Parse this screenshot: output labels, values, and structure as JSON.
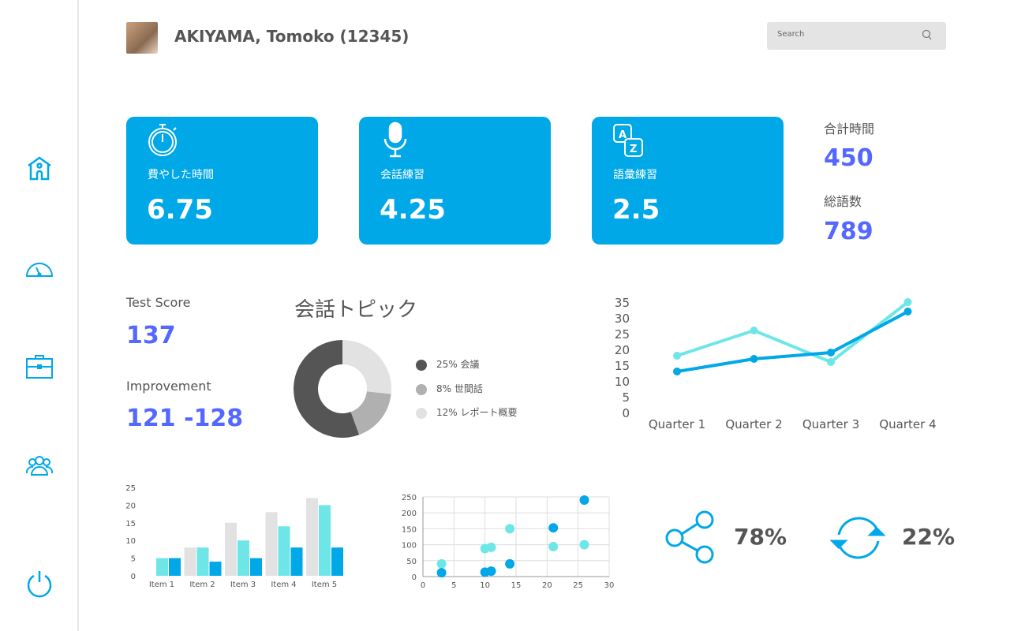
{
  "header": {
    "user_name": "AKIYAMA, Tomoko (12345)",
    "search_placeholder": "Search"
  },
  "sidebar": {
    "items": [
      {
        "icon": "home-icon"
      },
      {
        "icon": "gauge-icon"
      },
      {
        "icon": "briefcase-icon"
      },
      {
        "icon": "users-icon"
      },
      {
        "icon": "power-icon"
      }
    ]
  },
  "colors": {
    "accent": "#00a8e8",
    "light": "#6ee6e8",
    "value": "#5468ff",
    "gray": "#e2e2e2"
  },
  "cards": [
    {
      "icon": "stopwatch-icon",
      "label": "費やした時間",
      "value": "6.75"
    },
    {
      "icon": "microphone-icon",
      "label": "会話練習",
      "value": "4.25"
    },
    {
      "icon": "translate-az-icon",
      "label": "語彙練習",
      "value": "2.5"
    }
  ],
  "totals": {
    "time_label": "合計時間",
    "time_value": "450",
    "words_label": "総語数",
    "words_value": "789"
  },
  "scores": {
    "test_label": "Test Score",
    "test_value": "137",
    "improve_label": "Improvement",
    "improve_value": "121 -128"
  },
  "share": {
    "icon": "share-icon",
    "value": "78%"
  },
  "sync": {
    "icon": "sync-icon",
    "value": "22%"
  },
  "chart_data": [
    {
      "type": "pie",
      "title": "会話トピック",
      "donut": true,
      "slices": [
        {
          "label": "25% 会議",
          "value": 25,
          "color": "#555555"
        },
        {
          "label": "8% 世間話",
          "value": 8,
          "color": "#b0b0b0"
        },
        {
          "label": "12% レポート概要",
          "value": 12,
          "color": "#e2e2e2"
        }
      ]
    },
    {
      "type": "line",
      "categories": [
        "Quarter 1",
        "Quarter 2",
        "Quarter 3",
        "Quarter 4"
      ],
      "ylim": [
        0,
        35
      ],
      "yticks": [
        0,
        5,
        10,
        15,
        20,
        25,
        30,
        35
      ],
      "series": [
        {
          "values": [
            18,
            26,
            16,
            35
          ],
          "color": "#6ee6e8"
        },
        {
          "values": [
            13,
            17,
            19,
            32
          ],
          "color": "#00a8e8"
        }
      ]
    },
    {
      "type": "bar",
      "categories": [
        "Item 1",
        "Item 2",
        "Item 3",
        "Item 4",
        "Item 5"
      ],
      "ylim": [
        0,
        25
      ],
      "yticks": [
        0,
        5,
        10,
        15,
        20,
        25
      ],
      "series": [
        {
          "values": [
            0,
            8,
            15,
            18,
            22
          ],
          "color": "#e2e2e2"
        },
        {
          "values": [
            5,
            8,
            10,
            14,
            20
          ],
          "color": "#6ee6e8"
        },
        {
          "values": [
            5,
            4,
            5,
            8,
            8
          ],
          "color": "#00a8e8"
        }
      ]
    },
    {
      "type": "scatter",
      "xlim": [
        0,
        30
      ],
      "ylim": [
        0,
        250
      ],
      "xticks": [
        0,
        5,
        10,
        15,
        20,
        25,
        30
      ],
      "yticks": [
        0,
        50,
        100,
        150,
        200,
        250
      ],
      "grid": true,
      "series": [
        {
          "color": "#6ee6e8",
          "points": [
            [
              3,
              40
            ],
            [
              10,
              88
            ],
            [
              11,
              92
            ],
            [
              14,
              150
            ],
            [
              21,
              94
            ],
            [
              26,
              100
            ]
          ]
        },
        {
          "color": "#00a8e8",
          "points": [
            [
              3,
              12
            ],
            [
              10,
              14
            ],
            [
              11,
              17
            ],
            [
              14,
              40
            ],
            [
              21,
              153
            ],
            [
              26,
              240
            ]
          ]
        }
      ]
    }
  ]
}
